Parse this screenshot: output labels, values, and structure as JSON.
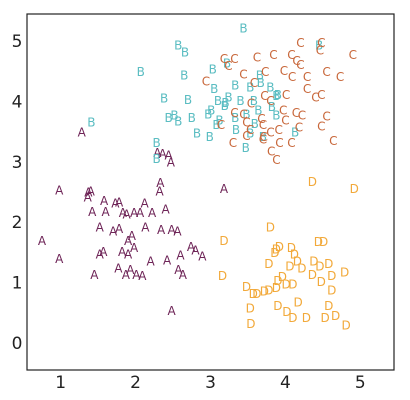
{
  "chart_data": {
    "type": "scatter",
    "title": "",
    "xlabel": "",
    "ylabel": "",
    "xlim": [
      0.55,
      5.45
    ],
    "ylim": [
      -0.45,
      5.45
    ],
    "xticks": [
      1,
      2,
      3,
      4,
      5
    ],
    "yticks": [
      0,
      1,
      2,
      3,
      4,
      5
    ],
    "xtick_labels": [
      "1",
      "2",
      "3",
      "4",
      "5"
    ],
    "ytick_labels": [
      "0",
      "1",
      "2",
      "3",
      "4",
      "5"
    ],
    "grid": false,
    "legend": "none",
    "series": [
      {
        "marker": "A",
        "color": "#6e2457",
        "points": [
          [
            0.98,
            2.52
          ],
          [
            1.37,
            2.48
          ],
          [
            1.36,
            2.4
          ],
          [
            1.4,
            2.5
          ],
          [
            1.58,
            2.34
          ],
          [
            1.73,
            2.3
          ],
          [
            1.42,
            2.16
          ],
          [
            1.6,
            2.16
          ],
          [
            1.83,
            2.14
          ],
          [
            1.78,
            2.32
          ],
          [
            1.88,
            2.12
          ],
          [
            1.98,
            2.14
          ],
          [
            2.12,
            2.3
          ],
          [
            2.32,
            2.5
          ],
          [
            2.33,
            2.64
          ],
          [
            2.47,
            2.98
          ],
          [
            2.44,
            3.1
          ],
          [
            2.29,
            3.14
          ],
          [
            2.4,
            2.2
          ],
          [
            2.22,
            2.14
          ],
          [
            2.06,
            2.14
          ],
          [
            2.13,
            1.9
          ],
          [
            1.52,
            1.9
          ],
          [
            1.78,
            1.88
          ],
          [
            2.34,
            1.86
          ],
          [
            2.48,
            1.86
          ],
          [
            2.56,
            1.84
          ],
          [
            0.75,
            1.68
          ],
          [
            1.9,
            1.68
          ],
          [
            1.95,
            1.76
          ],
          [
            2.6,
            1.44
          ],
          [
            2.42,
            1.36
          ],
          [
            2.8,
            1.52
          ],
          [
            1.52,
            1.46
          ],
          [
            1.57,
            1.5
          ],
          [
            1.82,
            1.5
          ],
          [
            1.9,
            1.46
          ],
          [
            1.98,
            1.56
          ],
          [
            2.2,
            1.34
          ],
          [
            1.87,
            1.12
          ],
          [
            1.93,
            1.2
          ],
          [
            2.01,
            1.12
          ],
          [
            0.98,
            1.38
          ],
          [
            1.45,
            1.12
          ],
          [
            1.77,
            1.22
          ],
          [
            2.09,
            1.1
          ],
          [
            2.57,
            1.2
          ],
          [
            2.63,
            1.12
          ],
          [
            2.89,
            1.42
          ],
          [
            3.18,
            2.54
          ],
          [
            2.48,
            0.52
          ],
          [
            1.28,
            3.48
          ],
          [
            2.74,
            1.58
          ],
          [
            2.36,
            3.12
          ],
          [
            1.7,
            1.84
          ]
        ]
      },
      {
        "marker": "B",
        "color": "#5bbdc2",
        "points": [
          [
            2.57,
            4.92
          ],
          [
            2.66,
            4.8
          ],
          [
            3.44,
            5.2
          ],
          [
            4.45,
            4.92
          ],
          [
            2.07,
            4.48
          ],
          [
            2.65,
            4.42
          ],
          [
            3.03,
            4.52
          ],
          [
            3.22,
            4.62
          ],
          [
            3.66,
            4.42
          ],
          [
            3.05,
            4.2
          ],
          [
            3.33,
            4.26
          ],
          [
            3.53,
            4.22
          ],
          [
            3.67,
            4.3
          ],
          [
            3.8,
            4.22
          ],
          [
            3.88,
            4.08
          ],
          [
            2.38,
            4.04
          ],
          [
            2.7,
            4.02
          ],
          [
            3.1,
            4.0
          ],
          [
            3.2,
            3.97
          ],
          [
            3.24,
            4.06
          ],
          [
            3.4,
            4.0
          ],
          [
            3.58,
            4.0
          ],
          [
            3.9,
            4.1
          ],
          [
            2.52,
            3.76
          ],
          [
            2.57,
            3.66
          ],
          [
            2.75,
            3.72
          ],
          [
            2.97,
            3.78
          ],
          [
            3.19,
            3.92
          ],
          [
            3.33,
            3.72
          ],
          [
            3.48,
            3.78
          ],
          [
            3.64,
            3.84
          ],
          [
            3.88,
            3.76
          ],
          [
            1.41,
            3.64
          ],
          [
            2.82,
            3.46
          ],
          [
            2.99,
            3.4
          ],
          [
            3.08,
            3.6
          ],
          [
            3.34,
            3.52
          ],
          [
            3.53,
            3.46
          ],
          [
            3.59,
            3.62
          ],
          [
            3.7,
            3.4
          ],
          [
            4.13,
            3.48
          ],
          [
            2.28,
            3.3
          ],
          [
            3.47,
            3.22
          ],
          [
            2.28,
            3.04
          ],
          [
            2.44,
            3.72
          ],
          [
            3.12,
            3.68
          ],
          [
            3.82,
            3.9
          ],
          [
            3.01,
            3.84
          ]
        ]
      },
      {
        "marker": "C",
        "color": "#c8673a",
        "points": [
          [
            3.18,
            4.7
          ],
          [
            3.24,
            4.58
          ],
          [
            3.32,
            4.7
          ],
          [
            3.62,
            4.72
          ],
          [
            3.84,
            4.76
          ],
          [
            4.08,
            4.76
          ],
          [
            4.2,
            4.96
          ],
          [
            4.48,
            4.96
          ],
          [
            4.46,
            4.84
          ],
          [
            4.9,
            4.76
          ],
          [
            3.44,
            4.44
          ],
          [
            3.58,
            4.3
          ],
          [
            3.73,
            4.48
          ],
          [
            3.98,
            4.5
          ],
          [
            4.09,
            4.4
          ],
          [
            4.15,
            4.66
          ],
          [
            4.2,
            4.6
          ],
          [
            4.29,
            4.4
          ],
          [
            4.55,
            4.48
          ],
          [
            4.73,
            4.4
          ],
          [
            2.94,
            4.32
          ],
          [
            3.72,
            4.08
          ],
          [
            3.8,
            4.0
          ],
          [
            4.01,
            4.1
          ],
          [
            4.29,
            4.2
          ],
          [
            4.4,
            4.06
          ],
          [
            4.48,
            4.1
          ],
          [
            3.32,
            3.8
          ],
          [
            3.48,
            3.64
          ],
          [
            3.53,
            3.52
          ],
          [
            3.68,
            3.7
          ],
          [
            3.8,
            3.48
          ],
          [
            3.91,
            3.52
          ],
          [
            4.0,
            3.68
          ],
          [
            4.14,
            3.8
          ],
          [
            4.22,
            3.76
          ],
          [
            4.08,
            3.3
          ],
          [
            4.18,
            3.56
          ],
          [
            3.7,
            3.6
          ],
          [
            3.44,
            3.78
          ],
          [
            3.92,
            3.3
          ],
          [
            3.81,
            3.16
          ],
          [
            3.71,
            3.4
          ],
          [
            4.55,
            3.74
          ],
          [
            4.64,
            3.34
          ],
          [
            4.48,
            3.58
          ],
          [
            3.7,
            3.36
          ],
          [
            3.88,
            3.02
          ],
          [
            3.48,
            3.42
          ],
          [
            3.14,
            3.6
          ],
          [
            3.54,
            3.96
          ],
          [
            3.3,
            3.3
          ],
          [
            3.97,
            3.84
          ]
        ]
      },
      {
        "marker": "D",
        "color": "#f2a93a",
        "points": [
          [
            4.36,
            2.66
          ],
          [
            4.92,
            2.54
          ],
          [
            3.8,
            1.9
          ],
          [
            3.18,
            1.68
          ],
          [
            3.88,
            1.54
          ],
          [
            3.92,
            1.58
          ],
          [
            4.08,
            1.56
          ],
          [
            4.12,
            1.46
          ],
          [
            4.44,
            1.66
          ],
          [
            4.51,
            1.66
          ],
          [
            3.78,
            1.3
          ],
          [
            4.06,
            1.26
          ],
          [
            4.16,
            1.34
          ],
          [
            3.86,
            1.48
          ],
          [
            4.22,
            1.22
          ],
          [
            4.38,
            1.34
          ],
          [
            4.46,
            1.26
          ],
          [
            4.58,
            1.3
          ],
          [
            3.16,
            1.1
          ],
          [
            4.36,
            1.12
          ],
          [
            4.62,
            1.1
          ],
          [
            4.79,
            1.16
          ],
          [
            3.9,
            1.02
          ],
          [
            3.96,
            1.08
          ],
          [
            4.01,
            0.96
          ],
          [
            4.1,
            0.96
          ],
          [
            4.48,
            1.0
          ],
          [
            4.62,
            0.86
          ],
          [
            3.48,
            0.92
          ],
          [
            3.57,
            0.8
          ],
          [
            3.62,
            0.8
          ],
          [
            3.72,
            0.84
          ],
          [
            3.78,
            0.86
          ],
          [
            3.88,
            0.9
          ],
          [
            4.17,
            0.66
          ],
          [
            4.58,
            0.6
          ],
          [
            4.67,
            0.44
          ],
          [
            3.53,
            0.56
          ],
          [
            3.9,
            0.6
          ],
          [
            4.81,
            0.28
          ],
          [
            3.54,
            0.3
          ],
          [
            4.02,
            0.5
          ],
          [
            4.1,
            0.4
          ],
          [
            4.28,
            0.4
          ],
          [
            4.53,
            0.4
          ]
        ]
      }
    ]
  }
}
